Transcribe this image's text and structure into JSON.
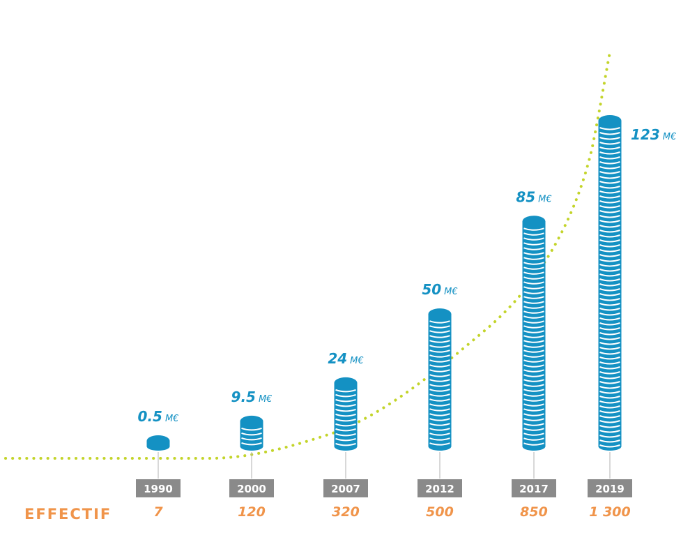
{
  "colors": {
    "coin": "#1491c3",
    "coin_stripe": "#ffffff",
    "curve": "#c3d42a",
    "year_box": "#8a8a8a",
    "staff": "#f0944a",
    "tick": "#b0b0b0"
  },
  "effectif_label": "EFFECTIF",
  "chart_data": {
    "type": "bar",
    "style": "stacked-coin columns with dotted growth curve",
    "categories": [
      "1990",
      "2000",
      "2007",
      "2012",
      "2017",
      "2019"
    ],
    "series": [
      {
        "unit": "M€",
        "values": [
          0.5,
          9.5,
          24,
          50,
          85,
          123
        ],
        "labels": [
          "0.5",
          "9.5",
          "24",
          "50",
          "85",
          "123"
        ]
      },
      {
        "name": "EFFECTIF",
        "values": [
          7,
          120,
          320,
          500,
          850,
          1300
        ],
        "labels": [
          "7",
          "120",
          "320",
          "500",
          "850",
          "1 300"
        ]
      }
    ],
    "revenue_unit": "M€",
    "grid": false,
    "legend": "none"
  }
}
